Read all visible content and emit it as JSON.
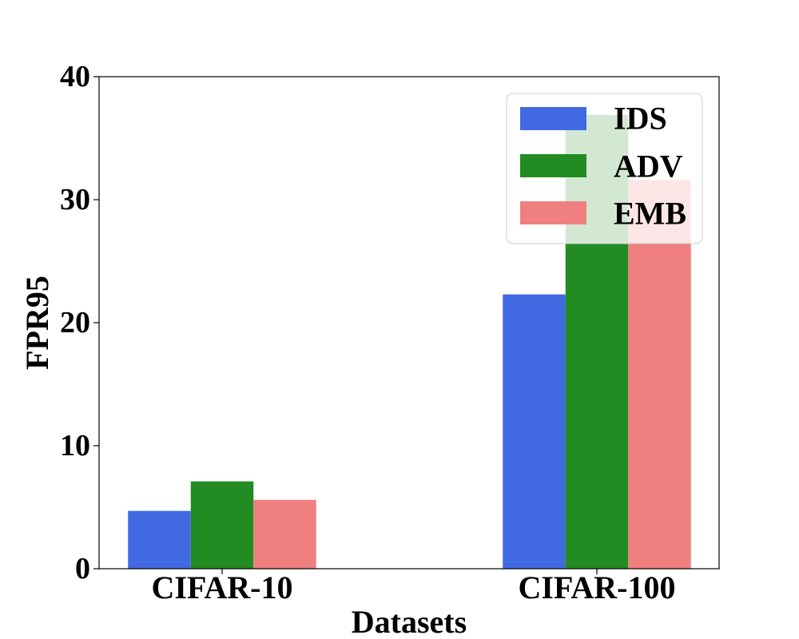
{
  "chart_data": {
    "type": "bar",
    "xlabel": "Datasets",
    "ylabel": "FPR95",
    "categories": [
      "CIFAR-10",
      "CIFAR-100"
    ],
    "ylim": [
      0,
      40
    ],
    "yticks": [
      "0",
      "10",
      "20",
      "30",
      "40"
    ],
    "grid": false,
    "legend_position": "top-right",
    "series": [
      {
        "name": "IDS",
        "color": "#4169E1",
        "values": [
          4.7,
          22.3
        ]
      },
      {
        "name": "ADV",
        "color": "#228B22",
        "values": [
          7.1,
          36.9
        ]
      },
      {
        "name": "EMB",
        "color": "#F08080",
        "values": [
          5.6,
          31.6
        ]
      }
    ]
  }
}
